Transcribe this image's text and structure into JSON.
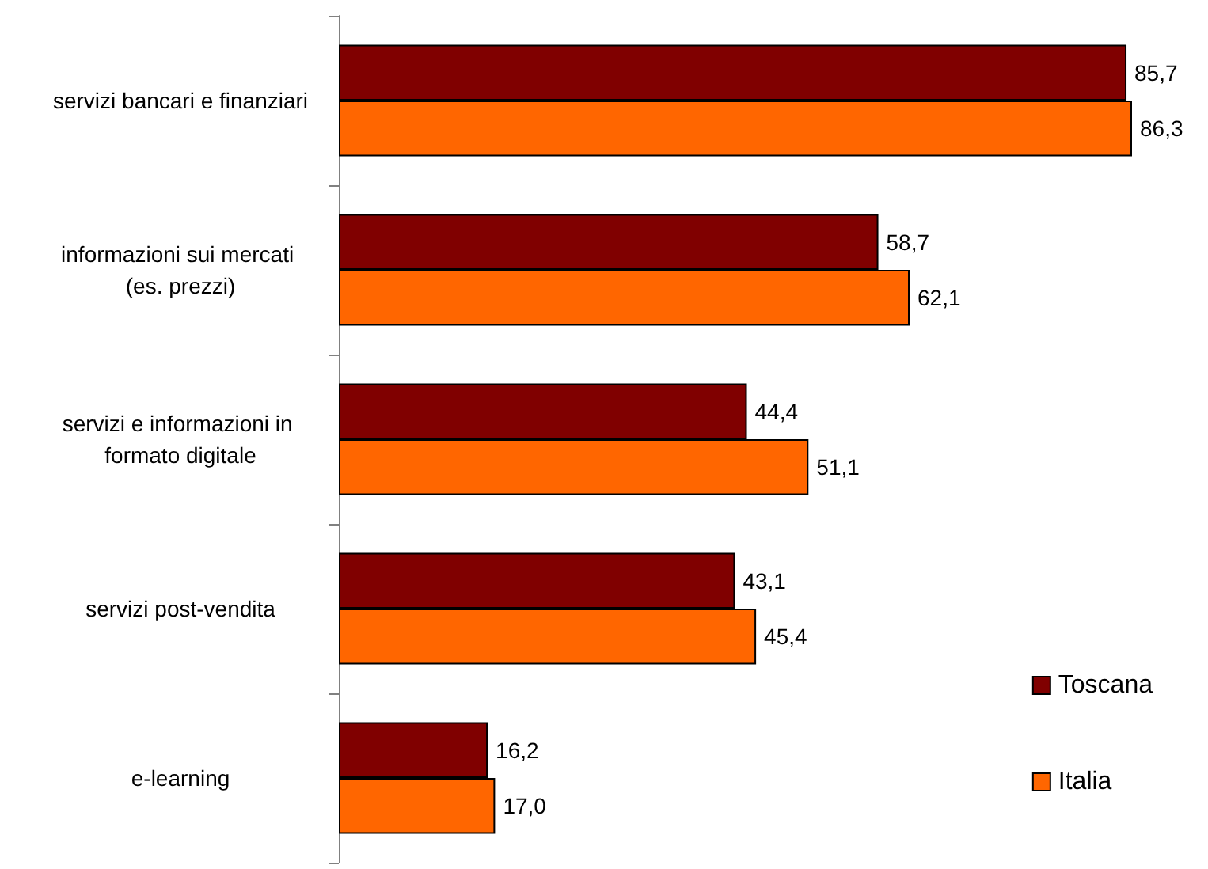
{
  "chart_data": {
    "type": "bar",
    "orientation": "horizontal",
    "categories": [
      "servizi bancari e finanziari",
      "informazioni sui mercati (es. prezzi)",
      "servizi e informazioni in formato digitale",
      "servizi post-vendita",
      "e-learning"
    ],
    "series": [
      {
        "name": "Toscana",
        "color": "#800000",
        "values": [
          85.7,
          58.7,
          44.4,
          43.1,
          16.2
        ],
        "value_labels": [
          "85,7",
          "58,7",
          "44,4",
          "43,1",
          "16,2"
        ]
      },
      {
        "name": "Italia",
        "color": "#ff6600",
        "values": [
          86.3,
          62.1,
          51.1,
          45.4,
          17.0
        ],
        "value_labels": [
          "86,3",
          "62,1",
          "51,1",
          "45,4",
          "17,0"
        ]
      }
    ],
    "legend": "right",
    "grid": false
  }
}
